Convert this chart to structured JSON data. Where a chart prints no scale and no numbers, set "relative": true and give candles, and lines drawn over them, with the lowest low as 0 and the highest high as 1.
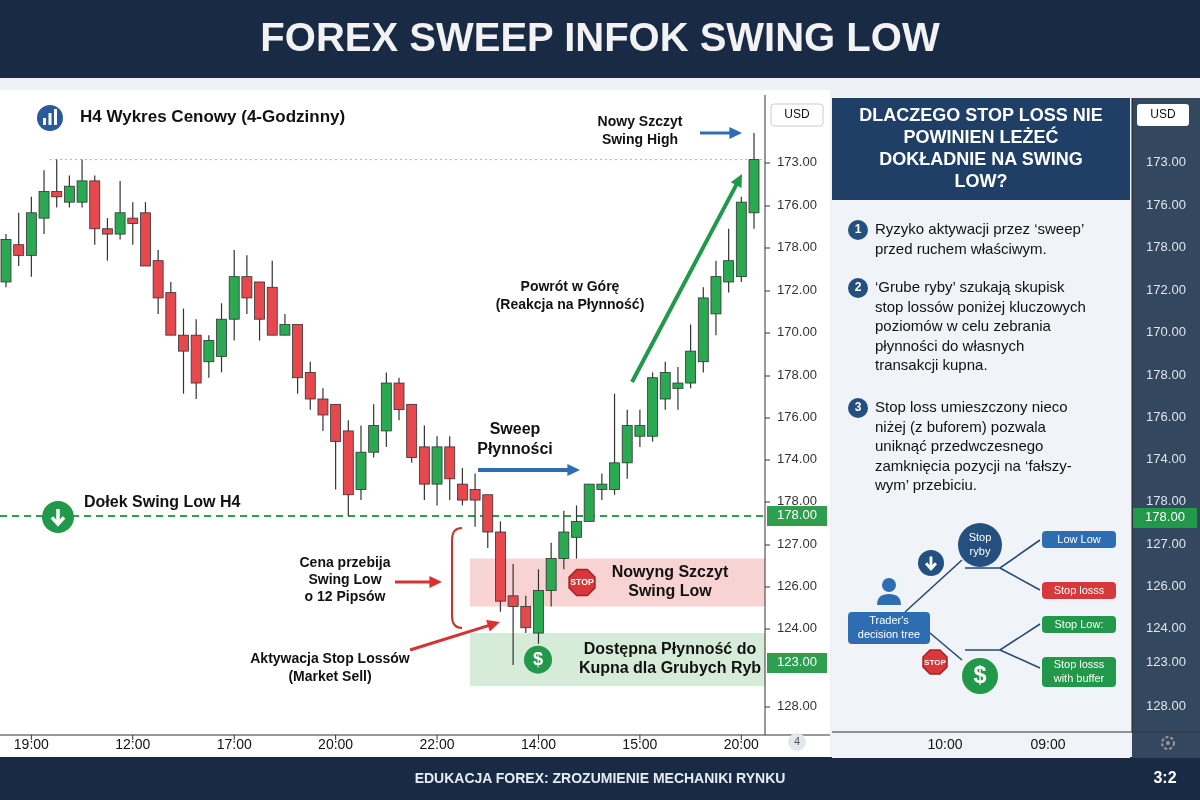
{
  "chart_data": [
    {
      "type": "candlestick",
      "title": "FOREX SWEEP INFOK SWING LOW",
      "subtitle": "H4 Wykres Cenowy (4-Godzinny)",
      "ylabel": "USD",
      "relative": true,
      "categories": [
        null,
        null,
        "19:00",
        null,
        null,
        null,
        null,
        null,
        null,
        null,
        "12:00",
        null,
        null,
        null,
        null,
        null,
        null,
        null,
        "17:00",
        null,
        null,
        null,
        null,
        null,
        null,
        null,
        "20:00",
        null,
        null,
        null,
        null,
        null,
        null,
        null,
        "22:00",
        null,
        null,
        null,
        null,
        null,
        null,
        null,
        "14:00",
        null,
        null,
        null,
        null,
        null,
        null,
        null,
        "15:00",
        null,
        null,
        null,
        null,
        null,
        null,
        null,
        "20:00",
        null
      ],
      "ohlc": [
        [
          0.72,
          0.81,
          0.71,
          0.8
        ],
        [
          0.79,
          0.85,
          0.75,
          0.77
        ],
        [
          0.77,
          0.88,
          0.73,
          0.85
        ],
        [
          0.84,
          0.93,
          0.81,
          0.89
        ],
        [
          0.89,
          0.95,
          0.86,
          0.88
        ],
        [
          0.87,
          0.92,
          0.86,
          0.9
        ],
        [
          0.87,
          0.95,
          0.86,
          0.91
        ],
        [
          0.91,
          0.92,
          0.79,
          0.82
        ],
        [
          0.82,
          0.84,
          0.76,
          0.81
        ],
        [
          0.81,
          0.91,
          0.8,
          0.85
        ],
        [
          0.84,
          0.87,
          0.79,
          0.83
        ],
        [
          0.85,
          0.87,
          0.75,
          0.75
        ],
        [
          0.76,
          0.78,
          0.66,
          0.69
        ],
        [
          0.7,
          0.72,
          0.62,
          0.62
        ],
        [
          0.62,
          0.67,
          0.51,
          0.59
        ],
        [
          0.62,
          0.65,
          0.5,
          0.53
        ],
        [
          0.57,
          0.62,
          0.54,
          0.61
        ],
        [
          0.58,
          0.68,
          0.55,
          0.65
        ],
        [
          0.65,
          0.78,
          0.61,
          0.73
        ],
        [
          0.73,
          0.77,
          0.66,
          0.69
        ],
        [
          0.72,
          0.72,
          0.61,
          0.65
        ],
        [
          0.71,
          0.76,
          0.62,
          0.62
        ],
        [
          0.62,
          0.66,
          0.62,
          0.64
        ],
        [
          0.64,
          0.64,
          0.51,
          0.54
        ],
        [
          0.55,
          0.57,
          0.48,
          0.5
        ],
        [
          0.5,
          0.52,
          0.44,
          0.47
        ],
        [
          0.49,
          0.49,
          0.33,
          0.42
        ],
        [
          0.44,
          0.46,
          0.28,
          0.32
        ],
        [
          0.33,
          0.45,
          0.31,
          0.4
        ],
        [
          0.4,
          0.49,
          0.39,
          0.45
        ],
        [
          0.44,
          0.55,
          0.41,
          0.53
        ],
        [
          0.53,
          0.54,
          0.46,
          0.48
        ],
        [
          0.49,
          0.49,
          0.38,
          0.39
        ],
        [
          0.41,
          0.45,
          0.31,
          0.34
        ],
        [
          0.34,
          0.43,
          0.3,
          0.41
        ],
        [
          0.41,
          0.43,
          0.31,
          0.35
        ],
        [
          0.34,
          0.37,
          0.3,
          0.31
        ],
        [
          0.33,
          0.36,
          0.26,
          0.31
        ],
        [
          0.32,
          0.32,
          0.22,
          0.25
        ],
        [
          0.25,
          0.27,
          0.1,
          0.12
        ],
        [
          0.13,
          0.19,
          0,
          0.11
        ],
        [
          0.11,
          0.13,
          0.06,
          0.07
        ],
        [
          0.06,
          0.18,
          0.04,
          0.14
        ],
        [
          0.14,
          0.23,
          0.11,
          0.2
        ],
        [
          0.2,
          0.29,
          0.18,
          0.25
        ],
        [
          0.24,
          0.3,
          0.2,
          0.27
        ],
        [
          0.27,
          0.34,
          0.27,
          0.34
        ],
        [
          0.33,
          0.36,
          0.31,
          0.34
        ],
        [
          0.33,
          0.51,
          0.32,
          0.38
        ],
        [
          0.38,
          0.48,
          0.35,
          0.45
        ],
        [
          0.43,
          0.48,
          0.41,
          0.45
        ],
        [
          0.43,
          0.55,
          0.42,
          0.54
        ],
        [
          0.5,
          0.57,
          0.48,
          0.55
        ],
        [
          0.52,
          0.56,
          0.48,
          0.53
        ],
        [
          0.53,
          0.64,
          0.52,
          0.59
        ],
        [
          0.57,
          0.71,
          0.55,
          0.69
        ],
        [
          0.66,
          0.76,
          0.62,
          0.73
        ],
        [
          0.72,
          0.82,
          0.7,
          0.76
        ],
        [
          0.73,
          0.88,
          0.72,
          0.87
        ],
        [
          0.85,
          1,
          0.82,
          0.95
        ]
      ],
      "ref_lines": [
        {
          "axis": "y",
          "value": 0.28,
          "color": "#2e9e4f",
          "line_style": "dashed"
        },
        {
          "axis": "y",
          "value": 0.95,
          "color": "#b0b0b0",
          "line_style": "dotted"
        }
      ],
      "bands": [
        {
          "axis": "y",
          "from": 0.11,
          "to": 0.2,
          "label": "Nowyng Szczyt\nSwing Low",
          "color": "#f8d3d3"
        },
        {
          "axis": "y",
          "from": -0.04,
          "to": 0.06,
          "label": "Dostępna Płynność do\nKupna dla Grubych Ryb",
          "color": "#d6ecd9"
        }
      ],
      "annotations": [
        "Nowy Szczyt\nSwing High",
        "Powrót w Górę\n(Reakcja na Płynność)",
        "Sweep\nPłynności",
        "Dołek Swing Low H4",
        "Cena przebija\nSwing Low\no 12 Pipsów",
        "Aktywacja Stop Lossów\n(Market Sell)",
        "EDUKACJA FOREX: ZROZUMIENIE MECHANIKI RYNKU",
        "3:2",
        "4",
        "STOP",
        "$",
        "178.00",
        "173.00",
        "176.00",
        "178.00",
        "172.00",
        "170.00",
        "178.00",
        "176.00",
        "174.00",
        "178.00",
        "127.00",
        "126.00",
        "124.00",
        "123.00",
        "128.00"
      ]
    },
    {
      "type": "other",
      "title": "DLACZEGO STOP LOSS NIE POWINIEN LEŻEĆ DOKŁADNIE NA SWING LOW?",
      "annotations": [
        "1",
        "Ryzyko aktywacji przez ‘sweep’\nprzed ruchem właściwym.",
        "2",
        "‘Grube ryby’ szukają skupisk\nstop lossów poniżej kluczowych\npoziomów w celu zebrania\npłynności do własnych\ntransakcji kupna.",
        "3",
        "Stop loss umieszczony nieco\nniżej (z buforem) pozwala\nuniknąć przedwczesnego\nzamknięcia pozycji na ‘fałszy-\nwym’ przebiciu.",
        "Stop\nryby",
        "Low Low",
        "Stop losss",
        "Trader's\ndecision tree",
        "Stop Low:",
        "Stop losss\nwith buffer",
        "STOP",
        "USD",
        "173.00",
        "176.00",
        "178.00",
        "172.00",
        "170.00",
        "178.00",
        "176.00",
        "174.00",
        "178.00",
        "178.00",
        "127.00",
        "126.00",
        "124.00",
        "123.00",
        "128.00",
        "10:00",
        "09:00",
        "$"
      ]
    }
  ]
}
